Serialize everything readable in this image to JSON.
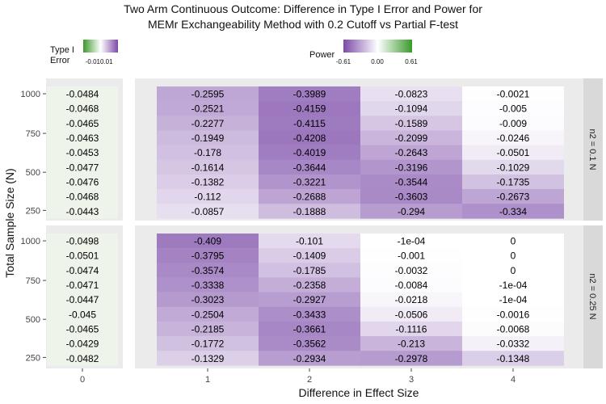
{
  "chart_data": {
    "type": "heatmap",
    "title": [
      "Two Arm Continuous Outcome: Difference in Type I Error and Power for",
      "MEMr Exchangeability Method with 0.2 Cutoff vs Partial F-test"
    ],
    "xlabel": "Difference in Effect Size",
    "ylabel": "Total Sample Size (N)",
    "x_type1": [
      "0"
    ],
    "x_power": [
      "1",
      "2",
      "3",
      "4"
    ],
    "y_tick_labels": [
      "1000",
      "750",
      "500",
      "250"
    ],
    "facets": [
      {
        "strip": "n2 = 0.1 N",
        "type1_error": [
          "-0.0484",
          "-0.0468",
          "-0.0465",
          "-0.0463",
          "-0.0453",
          "-0.0477",
          "-0.0476",
          "-0.0468",
          "-0.0443"
        ],
        "power": [
          [
            "-0.2595",
            "-0.3989",
            "-0.0823",
            "-0.0021"
          ],
          [
            "-0.2521",
            "-0.4159",
            "-0.1094",
            "-0.005"
          ],
          [
            "-0.2277",
            "-0.4115",
            "-0.1589",
            "-0.009"
          ],
          [
            "-0.1949",
            "-0.4208",
            "-0.2099",
            "-0.0246"
          ],
          [
            "-0.178",
            "-0.4019",
            "-0.2643",
            "-0.0501"
          ],
          [
            "-0.1614",
            "-0.3644",
            "-0.3196",
            "-0.1029"
          ],
          [
            "-0.1382",
            "-0.3221",
            "-0.3544",
            "-0.1735"
          ],
          [
            "-0.112",
            "-0.2688",
            "-0.3603",
            "-0.2673"
          ],
          [
            "-0.0857",
            "-0.1888",
            "-0.294",
            "-0.334"
          ]
        ]
      },
      {
        "strip": "n2 = 0.25 N",
        "type1_error": [
          "-0.0498",
          "-0.0501",
          "-0.0474",
          "-0.0471",
          "-0.0447",
          "-0.045",
          "-0.0465",
          "-0.0429",
          "-0.0482"
        ],
        "power": [
          [
            "-0.409",
            "-0.101",
            "-1e-04",
            "0"
          ],
          [
            "-0.3795",
            "-0.1409",
            "-0.001",
            "0"
          ],
          [
            "-0.3574",
            "-0.1785",
            "-0.0032",
            "0"
          ],
          [
            "-0.3338",
            "-0.2358",
            "-0.0084",
            "-1e-04"
          ],
          [
            "-0.3023",
            "-0.2927",
            "-0.0218",
            "-1e-04"
          ],
          [
            "-0.2504",
            "-0.3433",
            "-0.0506",
            "-0.0016"
          ],
          [
            "-0.2185",
            "-0.3661",
            "-0.1116",
            "-0.0068"
          ],
          [
            "-0.1772",
            "-0.3562",
            "-0.213",
            "-0.0332"
          ],
          [
            "-0.1329",
            "-0.2934",
            "-0.2978",
            "-0.1348"
          ]
        ]
      }
    ],
    "legends": {
      "type1": {
        "title": [
          "Type I",
          "Error"
        ],
        "tick_labels": [
          "-0.01",
          "0.01"
        ],
        "range": [
          -0.01,
          0.01
        ]
      },
      "power": {
        "title": "Power",
        "tick_labels": [
          "-0.61",
          "0.00",
          "0.61"
        ],
        "range": [
          -0.61,
          0.61
        ]
      }
    },
    "colors": {
      "negative": "#7b4aa8",
      "neutral": "#ffffff",
      "positive": "#3a9a2a",
      "type1_tile": "#eef4e9",
      "panel_bg": "#ebebeb",
      "strip_bg": "#d9d9d9"
    }
  }
}
